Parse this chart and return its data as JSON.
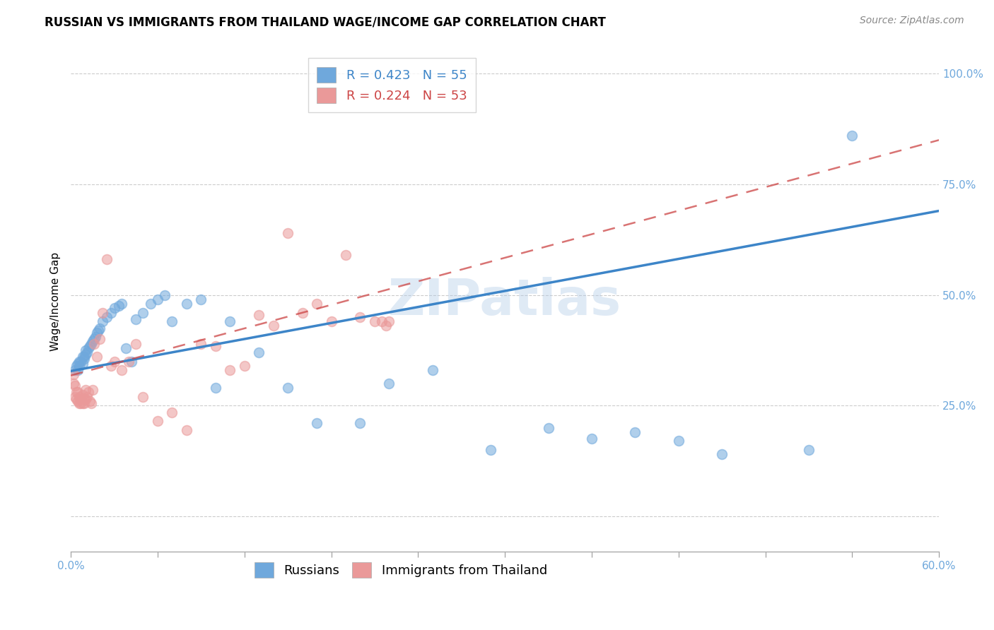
{
  "title": "RUSSIAN VS IMMIGRANTS FROM THAILAND WAGE/INCOME GAP CORRELATION CHART",
  "source": "Source: ZipAtlas.com",
  "ylabel": "Wage/Income Gap",
  "watermark": "ZIPatlas",
  "russian_R": 0.423,
  "russian_N": 55,
  "thailand_R": 0.224,
  "thailand_N": 53,
  "russian_color": "#6fa8dc",
  "thailand_color": "#ea9999",
  "russian_line_color": "#3d85c8",
  "thailand_line_color": "#cc4444",
  "axis_color": "#6fa8dc",
  "title_fontsize": 12,
  "source_fontsize": 10,
  "ylabel_fontsize": 11,
  "tick_fontsize": 11,
  "legend_fontsize": 13,
  "watermark_color": "#adc8e6",
  "watermark_fontsize": 52,
  "x_min": 0.0,
  "x_max": 0.6,
  "y_min": -0.08,
  "y_max": 1.05,
  "russian_scatter_x": [
    0.003,
    0.004,
    0.005,
    0.005,
    0.006,
    0.006,
    0.007,
    0.008,
    0.008,
    0.009,
    0.009,
    0.01,
    0.01,
    0.011,
    0.012,
    0.013,
    0.014,
    0.015,
    0.016,
    0.017,
    0.018,
    0.019,
    0.02,
    0.022,
    0.025,
    0.028,
    0.03,
    0.033,
    0.035,
    0.038,
    0.042,
    0.045,
    0.05,
    0.055,
    0.06,
    0.065,
    0.07,
    0.08,
    0.09,
    0.1,
    0.11,
    0.13,
    0.15,
    0.17,
    0.2,
    0.22,
    0.25,
    0.29,
    0.33,
    0.36,
    0.39,
    0.42,
    0.45,
    0.51,
    0.54
  ],
  "russian_scatter_y": [
    0.33,
    0.34,
    0.33,
    0.345,
    0.34,
    0.35,
    0.35,
    0.36,
    0.345,
    0.355,
    0.36,
    0.365,
    0.375,
    0.37,
    0.38,
    0.385,
    0.39,
    0.395,
    0.4,
    0.405,
    0.415,
    0.42,
    0.425,
    0.44,
    0.45,
    0.46,
    0.47,
    0.475,
    0.48,
    0.38,
    0.35,
    0.445,
    0.46,
    0.48,
    0.49,
    0.5,
    0.44,
    0.48,
    0.49,
    0.29,
    0.44,
    0.37,
    0.29,
    0.21,
    0.21,
    0.3,
    0.33,
    0.15,
    0.2,
    0.175,
    0.19,
    0.17,
    0.14,
    0.15,
    0.86
  ],
  "thailand_scatter_x": [
    0.002,
    0.002,
    0.003,
    0.003,
    0.004,
    0.004,
    0.005,
    0.005,
    0.006,
    0.006,
    0.007,
    0.007,
    0.008,
    0.008,
    0.009,
    0.009,
    0.01,
    0.01,
    0.011,
    0.012,
    0.013,
    0.014,
    0.015,
    0.016,
    0.018,
    0.02,
    0.022,
    0.025,
    0.028,
    0.03,
    0.035,
    0.04,
    0.045,
    0.05,
    0.06,
    0.07,
    0.08,
    0.09,
    0.1,
    0.11,
    0.12,
    0.13,
    0.14,
    0.15,
    0.16,
    0.17,
    0.18,
    0.19,
    0.2,
    0.21,
    0.215,
    0.218,
    0.22
  ],
  "thailand_scatter_y": [
    0.32,
    0.3,
    0.295,
    0.27,
    0.265,
    0.28,
    0.26,
    0.28,
    0.255,
    0.27,
    0.255,
    0.265,
    0.255,
    0.275,
    0.255,
    0.265,
    0.265,
    0.285,
    0.27,
    0.28,
    0.26,
    0.255,
    0.285,
    0.39,
    0.36,
    0.4,
    0.46,
    0.58,
    0.34,
    0.35,
    0.33,
    0.35,
    0.39,
    0.27,
    0.215,
    0.235,
    0.195,
    0.39,
    0.385,
    0.33,
    0.34,
    0.455,
    0.43,
    0.64,
    0.46,
    0.48,
    0.44,
    0.59,
    0.45,
    0.44,
    0.44,
    0.43,
    0.44
  ],
  "russian_line_x": [
    0.0,
    0.6
  ],
  "russian_line_y": [
    0.328,
    0.69
  ],
  "thailand_line_x": [
    0.0,
    0.6
  ],
  "thailand_line_y": [
    0.318,
    0.85
  ],
  "y_ticks": [
    0.0,
    0.25,
    0.5,
    0.75,
    1.0
  ],
  "y_tick_labels": [
    "",
    "25.0%",
    "50.0%",
    "75.0%",
    "100.0%"
  ],
  "x_ticks": [
    0.0,
    0.06,
    0.12,
    0.18,
    0.24,
    0.3,
    0.36,
    0.42,
    0.48,
    0.54,
    0.6
  ],
  "x_tick_labels": [
    "0.0%",
    "",
    "",
    "",
    "",
    "",
    "",
    "",
    "",
    "",
    "60.0%"
  ]
}
